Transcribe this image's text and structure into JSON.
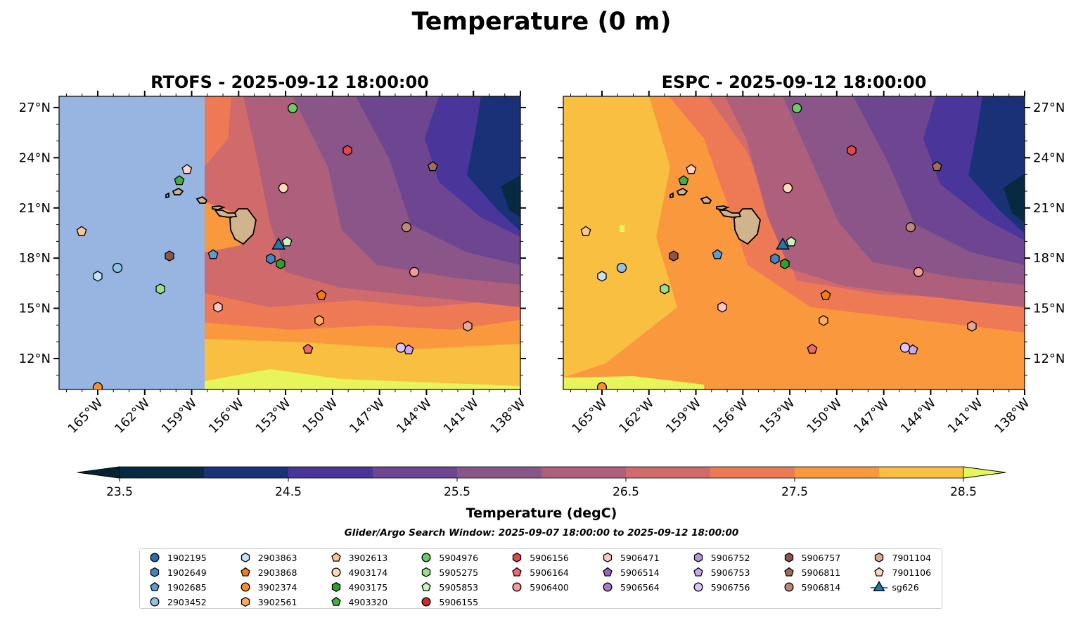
{
  "figure_title": "Temperature (0 m)",
  "colorbar": {
    "label": "Temperature (degC)",
    "ticks": [
      "23.5",
      "24.5",
      "25.5",
      "26.5",
      "27.5",
      "28.5"
    ],
    "range": [
      23.5,
      28.5
    ],
    "bins": [
      "#072a42",
      "#1b3177",
      "#4a359a",
      "#6d4591",
      "#8a5689",
      "#ad5f7c",
      "#d16b6b",
      "#ee7a55",
      "#fa983e",
      "#f8bf40"
    ],
    "extend_min_color": "#042333",
    "extend_max_color": "#e5f55a"
  },
  "search_window": "Glider/Argo Search Window: 2025-09-07 18:00:00 to 2025-09-12 18:00:00",
  "chart_data": {
    "type": "scatter",
    "extent": {
      "lon": [
        -167.47,
        -138.0
      ],
      "lat": [
        10.15,
        27.67
      ]
    },
    "lon_ticks": [
      {
        "v": -165,
        "label": "165°W"
      },
      {
        "v": -162,
        "label": "162°W"
      },
      {
        "v": -159,
        "label": "159°W"
      },
      {
        "v": -156,
        "label": "156°W"
      },
      {
        "v": -153,
        "label": "153°W"
      },
      {
        "v": -150,
        "label": "150°W"
      },
      {
        "v": -147,
        "label": "147°W"
      },
      {
        "v": -144,
        "label": "144°W"
      },
      {
        "v": -141,
        "label": "141°W"
      },
      {
        "v": -138,
        "label": "138°W"
      }
    ],
    "lat_ticks": [
      {
        "v": 12,
        "label": "12°N"
      },
      {
        "v": 15,
        "label": "15°N"
      },
      {
        "v": 18,
        "label": "18°N"
      },
      {
        "v": 21,
        "label": "21°N"
      },
      {
        "v": 24,
        "label": "24°N"
      },
      {
        "v": 27,
        "label": "27°N"
      }
    ],
    "panels": [
      {
        "title": "RTOFS - 2025-09-12 18:00:00",
        "model": "rtofs"
      },
      {
        "title": "ESPC - 2025-09-12 18:00:00",
        "model": "espc"
      }
    ],
    "platforms": [
      {
        "id": "1902195",
        "shape": "circle",
        "color": "#2171b5",
        "pos": null
      },
      {
        "id": "1902649",
        "shape": "hexagon",
        "color": "#3d88c4",
        "pos": [
          -153.95,
          17.96
        ]
      },
      {
        "id": "1902685",
        "shape": "pentagon",
        "color": "#5a9fd4",
        "pos": [
          -157.63,
          18.21
        ]
      },
      {
        "id": "2903452",
        "shape": "circle",
        "color": "#90c3e8",
        "pos": [
          -163.74,
          17.42
        ]
      },
      {
        "id": "2903863",
        "shape": "hexagon",
        "color": "#c6e2f7",
        "pos": [
          -165.0,
          16.92
        ]
      },
      {
        "id": "2903868",
        "shape": "pentagon",
        "color": "#f57c0d",
        "pos": [
          -150.71,
          15.78
        ]
      },
      {
        "id": "3902374",
        "shape": "circle",
        "color": "#fd8d2c",
        "pos": [
          -165.0,
          10.28
        ]
      },
      {
        "id": "3902561",
        "shape": "hexagon",
        "color": "#fdab63",
        "pos": [
          -150.85,
          14.27
        ]
      },
      {
        "id": "3902613",
        "shape": "pentagon",
        "color": "#fdc793",
        "pos": [
          -166.03,
          19.6
        ]
      },
      {
        "id": "4903174",
        "shape": "circle",
        "color": "#fdd9b8",
        "pos": [
          -153.14,
          22.19
        ]
      },
      {
        "id": "4903175",
        "shape": "hexagon",
        "color": "#2ca02c",
        "pos": [
          -153.32,
          17.66
        ]
      },
      {
        "id": "4903320",
        "shape": "pentagon",
        "color": "#41b041",
        "pos": [
          -159.79,
          22.63
        ]
      },
      {
        "id": "5904976",
        "shape": "circle",
        "color": "#6acc64",
        "pos": [
          -152.55,
          26.96
        ]
      },
      {
        "id": "5905275",
        "shape": "hexagon",
        "color": "#98df8a",
        "pos": [
          -161.0,
          16.16
        ]
      },
      {
        "id": "5905853",
        "shape": "pentagon",
        "color": "#c7f5c0",
        "pos": [
          -152.91,
          18.97
        ]
      },
      {
        "id": "5906155",
        "shape": "circle",
        "color": "#d62728",
        "pos": null
      },
      {
        "id": "5906156",
        "shape": "hexagon",
        "color": "#e04848",
        "pos": [
          -149.05,
          24.44
        ]
      },
      {
        "id": "5906164",
        "shape": "pentagon",
        "color": "#eb6a6a",
        "pos": [
          -151.57,
          12.56
        ]
      },
      {
        "id": "5906400",
        "shape": "circle",
        "color": "#f59898",
        "pos": [
          -144.78,
          17.17
        ]
      },
      {
        "id": "5906471",
        "shape": "hexagon",
        "color": "#ffc7c7",
        "pos": [
          -157.32,
          15.07
        ]
      },
      {
        "id": "5906514",
        "shape": "pentagon",
        "color": "#9467bd",
        "pos": null
      },
      {
        "id": "5906564",
        "shape": "circle",
        "color": "#a47dc9",
        "pos": null
      },
      {
        "id": "5906752",
        "shape": "hexagon",
        "color": "#b496dc",
        "pos": null
      },
      {
        "id": "5906753",
        "shape": "pentagon",
        "color": "#c8aaf0",
        "pos": [
          -145.14,
          12.52
        ]
      },
      {
        "id": "5906756",
        "shape": "circle",
        "color": "#dcc5fa",
        "pos": [
          -145.64,
          12.65
        ]
      },
      {
        "id": "5906757",
        "shape": "hexagon",
        "color": "#8c564b",
        "pos": [
          -160.42,
          18.13
        ]
      },
      {
        "id": "5906811",
        "shape": "pentagon",
        "color": "#a26a5c",
        "pos": [
          -143.6,
          23.47
        ]
      },
      {
        "id": "5906814",
        "shape": "circle",
        "color": "#c08878",
        "pos": [
          -145.28,
          19.85
        ]
      },
      {
        "id": "7901104",
        "shape": "hexagon",
        "color": "#e0a898",
        "pos": [
          -141.37,
          13.93
        ]
      },
      {
        "id": "7901106",
        "shape": "pentagon",
        "color": "#ffd4c4",
        "pos": [
          -159.3,
          23.3
        ]
      },
      {
        "id": "sg626",
        "shape": "triangle",
        "color": "#1f77b4",
        "pos": [
          -153.45,
          18.84
        ]
      }
    ]
  }
}
